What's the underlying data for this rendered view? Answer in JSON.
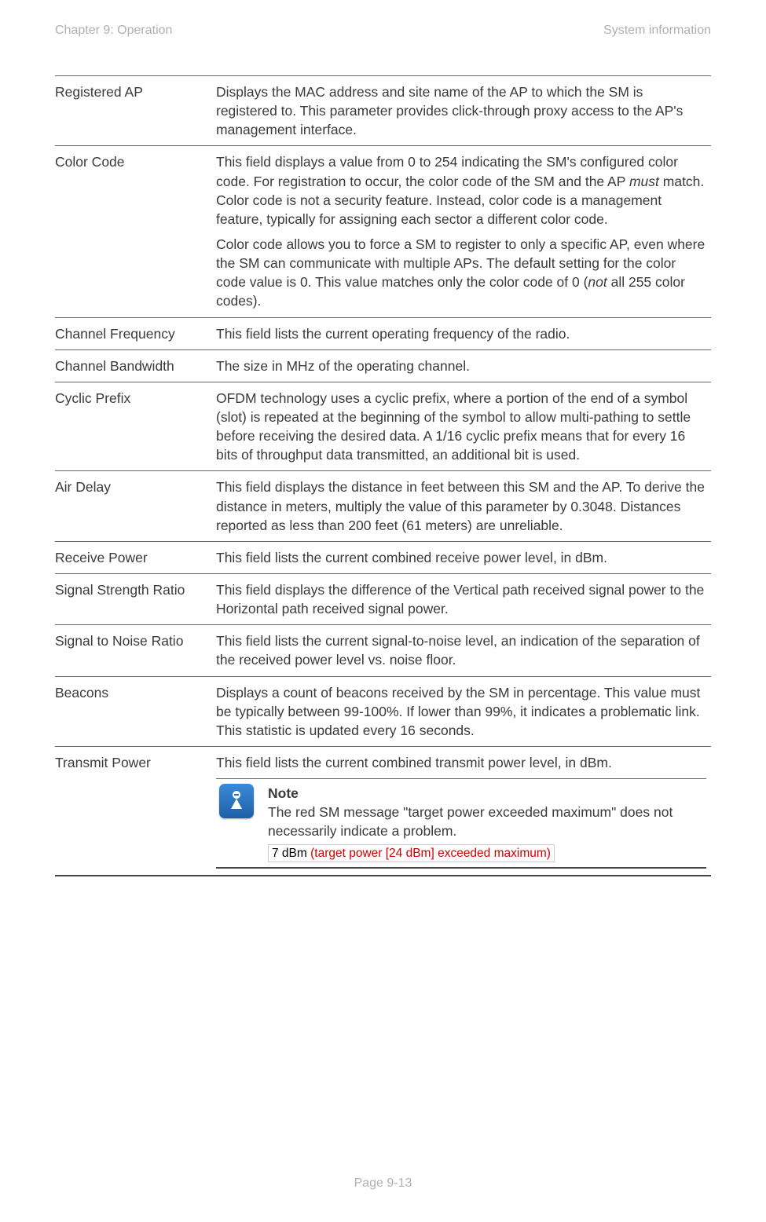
{
  "header": {
    "left": "Chapter 9:  Operation",
    "right": "System information"
  },
  "rows": [
    {
      "key": "Registered AP",
      "val": "Displays the MAC address and site name of the AP to which the SM is registered to. This parameter provides click-through proxy access to the AP's management interface."
    },
    {
      "key": "Color Code",
      "val": "This field displays a value from 0 to 254 indicating the SM's configured color code. For registration to occur, the color code of the SM and the AP <em class=\"it\">must</em> match. Color code is not a security feature. Instead, color code is a management feature, typically for assigning each sector a different color code.",
      "val2": "Color code allows you to force a SM to register to only a specific AP, even where the SM can communicate with multiple APs. The default setting for the color code value is 0. This value matches only the color code of 0 (<em class=\"it\">not</em> all 255 color codes)."
    },
    {
      "key": "Channel Frequency",
      "val": "This field lists the current operating frequency of the radio."
    },
    {
      "key": "Channel Bandwidth",
      "val": "The size in MHz of the operating channel."
    },
    {
      "key": "Cyclic Prefix",
      "val": "OFDM technology uses a cyclic prefix, where a portion of the end of a symbol (slot) is repeated at the beginning of the symbol to allow multi-pathing to settle before receiving the desired data. A 1/16 cyclic prefix means that for every 16 bits of throughput data transmitted, an additional bit is used."
    },
    {
      "key": "Air Delay",
      "val": "This field displays the distance in feet between this SM and the AP. To derive the distance in meters, multiply the value of this parameter by 0.3048. Distances reported as less than 200 feet (61 meters) are unreliable."
    },
    {
      "key": "Receive Power",
      "val": "This field lists the current combined receive power level, in dBm."
    },
    {
      "key": "Signal Strength Ratio",
      "val": "This field displays the difference of the Vertical path received signal power to the Horizontal path received signal power."
    },
    {
      "key": "Signal to Noise Ratio",
      "val": "This field lists the current signal-to-noise level, an indication of the separation of the received power level vs. noise floor."
    },
    {
      "key": "Beacons",
      "val": "Displays a count of beacons received by the SM in percentage. This value must be typically between 99-100%. If lower than 99%, it indicates a problematic link. This statistic is updated every 16 seconds."
    },
    {
      "key": "Transmit Power",
      "val": "This field lists the current combined transmit power level, in dBm."
    }
  ],
  "note": {
    "title": "Note",
    "body": "The red SM message \"target power exceeded maximum\" does not necessarily indicate a problem.",
    "sample_black": "7 dBm ",
    "sample_red": "(target power [24 dBm] exceeded maximum)"
  },
  "footer": "Page 9-13"
}
